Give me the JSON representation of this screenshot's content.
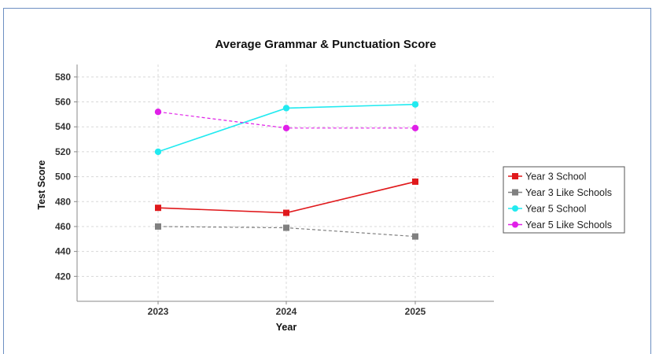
{
  "chart_data": {
    "type": "line",
    "title": "Average Grammar & Punctuation Score",
    "xlabel": "Year",
    "ylabel": "Test Score",
    "categories": [
      "2023",
      "2024",
      "2025"
    ],
    "ylim": [
      400,
      590
    ],
    "yticks": [
      420,
      440,
      460,
      480,
      500,
      520,
      540,
      560,
      580
    ],
    "grid": true,
    "legend_position": "right",
    "series": [
      {
        "name": "Year 3 School",
        "values": [
          475,
          471,
          496
        ],
        "color": "#e0191c",
        "marker": "square",
        "dashed": false
      },
      {
        "name": "Year 3 Like Schools",
        "values": [
          460,
          459,
          452
        ],
        "color": "#808080",
        "marker": "square",
        "dashed": true
      },
      {
        "name": "Year 5 School",
        "values": [
          520,
          555,
          558
        ],
        "color": "#22eaf0",
        "marker": "circle",
        "dashed": false
      },
      {
        "name": "Year 5 Like Schools",
        "values": [
          552,
          539,
          539
        ],
        "color": "#e020e8",
        "marker": "circle",
        "dashed": true
      }
    ]
  }
}
